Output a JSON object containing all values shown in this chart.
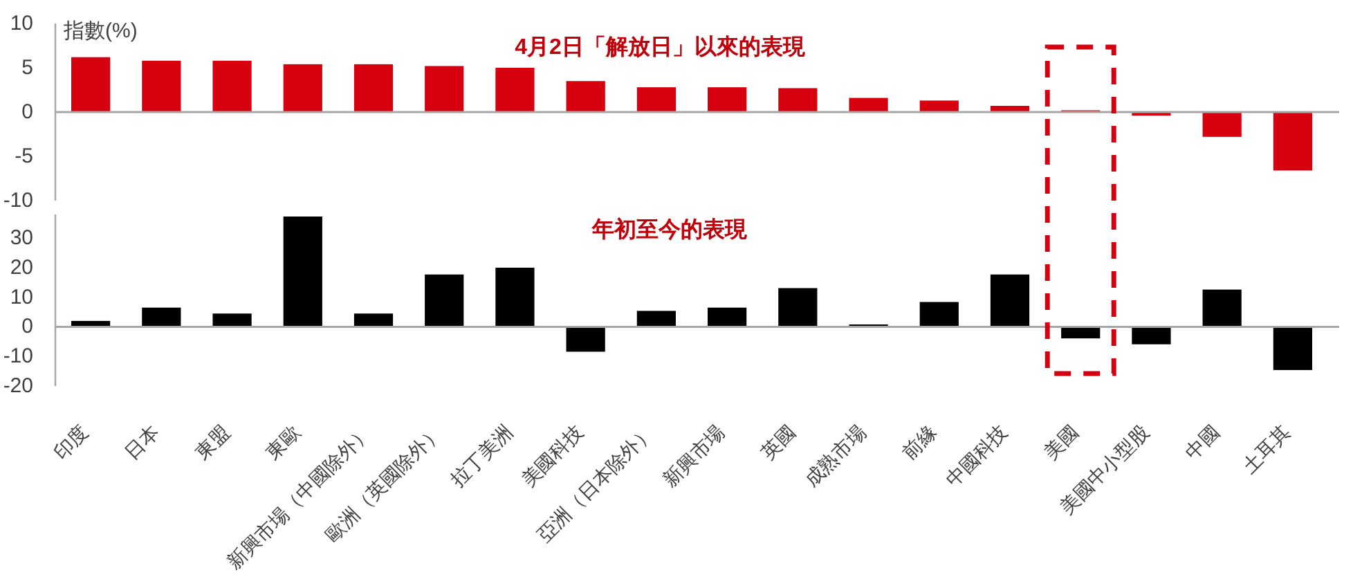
{
  "chart_data": [
    {
      "type": "bar",
      "title": "4月2日「解放日」以來的表現",
      "ylabel": "指數(%)",
      "categories": [
        "印度",
        "日本",
        "東盟",
        "東歐",
        "新興市場（中國除外）",
        "歐洲（英國除外）",
        "拉丁美洲",
        "美國科技",
        "亞洲（日本除外）",
        "新興市場",
        "英國",
        "成熟市場",
        "前緣",
        "中國科技",
        "美國",
        "美國中小型股",
        "中國",
        "土耳其"
      ],
      "values": [
        6.2,
        5.8,
        5.8,
        5.4,
        5.4,
        5.2,
        5.0,
        3.5,
        2.8,
        2.8,
        2.7,
        1.6,
        1.3,
        0.7,
        0.2,
        -0.4,
        -2.8,
        -6.6
      ],
      "color": "#d7000f",
      "ylim": [
        -10,
        10
      ],
      "yticks": [
        -10,
        -5,
        0,
        5,
        10
      ],
      "tick_labels": "y"
    },
    {
      "type": "bar",
      "title": "年初至今的表現",
      "categories": [
        "印度",
        "日本",
        "東盟",
        "東歐",
        "新興市場（中國除外）",
        "歐洲（英國除外）",
        "拉丁美洲",
        "美國科技",
        "亞洲（日本除外）",
        "新興市場",
        "英國",
        "成熟市場",
        "前緣",
        "中國科技",
        "美國",
        "美國中小型股",
        "中國",
        "土耳其"
      ],
      "values": [
        2,
        6.5,
        4.5,
        37.3,
        4.5,
        17.7,
        20,
        -8.4,
        5.4,
        6.5,
        13.1,
        0.8,
        8.4,
        17.7,
        -3.9,
        -5.9,
        12.6,
        -14.6
      ],
      "color": "#000000",
      "ylim": [
        -20,
        38
      ],
      "yticks": [
        -20,
        -10,
        0,
        10,
        20,
        30
      ]
    }
  ]
}
